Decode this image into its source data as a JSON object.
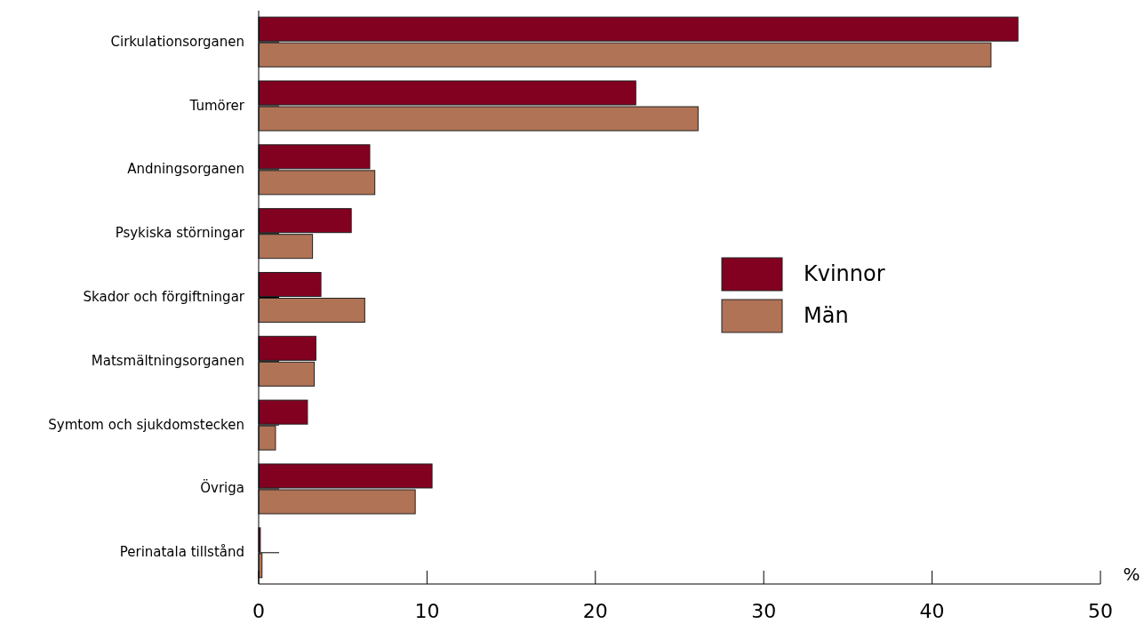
{
  "chart_data": {
    "type": "bar",
    "orientation": "horizontal",
    "xlabel": "%",
    "categories": [
      "Cirkulationsorganen",
      "Tumörer",
      "Andningsorganen",
      "Psykiska störningar",
      "Skador och förgiftningar",
      "Matsmältningsorganen",
      "Symtom och sjukdomstecken",
      "Övriga",
      "Perinatala tillstånd"
    ],
    "series": [
      {
        "name": "Kvinnor",
        "color": "#820020",
        "values": [
          45.1,
          22.4,
          6.6,
          5.5,
          3.7,
          3.4,
          2.9,
          10.3,
          0.1
        ]
      },
      {
        "name": "Män",
        "color": "#b07356",
        "values": [
          43.5,
          26.1,
          6.9,
          3.2,
          6.3,
          3.3,
          1.0,
          9.3,
          0.2
        ]
      }
    ],
    "xlim": [
      0,
      50
    ],
    "xticks": [
      0,
      10,
      20,
      30,
      40,
      50
    ],
    "grid": false,
    "legend": "right"
  }
}
